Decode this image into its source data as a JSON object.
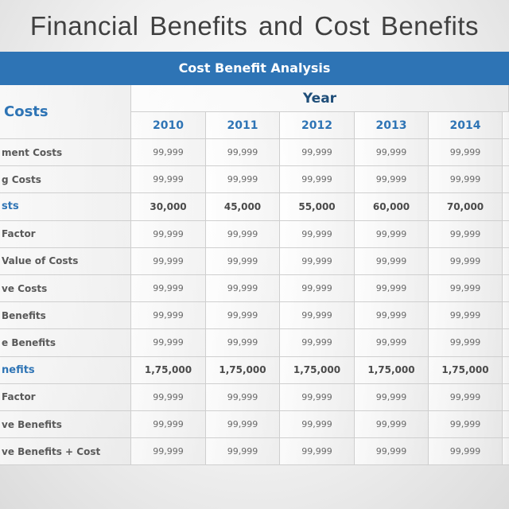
{
  "slide_title": "Financial Benefits and Cost Benefits",
  "banner": "Cost Benefit Analysis",
  "table": {
    "corner_label": "Costs",
    "year_header": "Year",
    "years": [
      "2010",
      "2011",
      "2012",
      "2013",
      "2014"
    ],
    "rows": [
      {
        "label": "ment Costs",
        "emphasis": false,
        "values": [
          "99,999",
          "99,999",
          "99,999",
          "99,999",
          "99,999"
        ]
      },
      {
        "label": "g Costs",
        "emphasis": false,
        "values": [
          "99,999",
          "99,999",
          "99,999",
          "99,999",
          "99,999"
        ]
      },
      {
        "label": "sts",
        "emphasis": true,
        "values": [
          "30,000",
          "45,000",
          "55,000",
          "60,000",
          "70,000"
        ]
      },
      {
        "label": "Factor",
        "emphasis": false,
        "values": [
          "99,999",
          "99,999",
          "99,999",
          "99,999",
          "99,999"
        ]
      },
      {
        "label": "Value of Costs",
        "emphasis": false,
        "values": [
          "99,999",
          "99,999",
          "99,999",
          "99,999",
          "99,999"
        ]
      },
      {
        "label": "ve Costs",
        "emphasis": false,
        "values": [
          "99,999",
          "99,999",
          "99,999",
          "99,999",
          "99,999"
        ]
      },
      {
        "label": "Benefits",
        "emphasis": false,
        "values": [
          "99,999",
          "99,999",
          "99,999",
          "99,999",
          "99,999"
        ]
      },
      {
        "label": "e  Benefits",
        "emphasis": false,
        "values": [
          "99,999",
          "99,999",
          "99,999",
          "99,999",
          "99,999"
        ]
      },
      {
        "label": "nefits",
        "emphasis": true,
        "values": [
          "1,75,000",
          "1,75,000",
          "1,75,000",
          "1,75,000",
          "1,75,000"
        ]
      },
      {
        "label": "Factor",
        "emphasis": false,
        "values": [
          "99,999",
          "99,999",
          "99,999",
          "99,999",
          "99,999"
        ]
      },
      {
        "label": "ve Benefits",
        "emphasis": false,
        "values": [
          "99,999",
          "99,999",
          "99,999",
          "99,999",
          "99,999"
        ]
      },
      {
        "label": "ve Benefits + Cost",
        "emphasis": false,
        "values": [
          "99,999",
          "99,999",
          "99,999",
          "99,999",
          "99,999"
        ]
      }
    ]
  },
  "colors": {
    "accent": "#2e74b5",
    "title": "#404040"
  }
}
